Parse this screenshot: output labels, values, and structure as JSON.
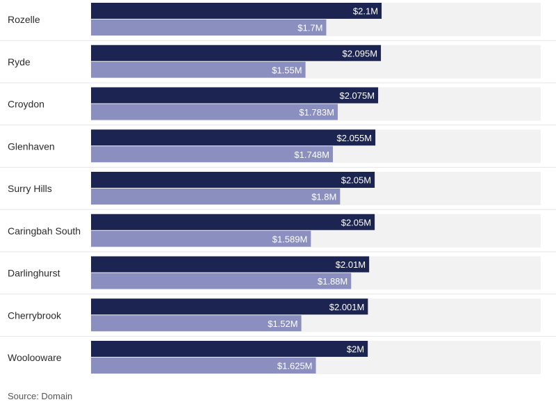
{
  "chart_data": {
    "type": "bar",
    "orientation": "horizontal",
    "categories": [
      "Rozelle",
      "Ryde",
      "Croydon",
      "Glenhaven",
      "Surry Hills",
      "Caringbah South",
      "Darlinghurst",
      "Cherrybrook",
      "Woolooware"
    ],
    "series": [
      {
        "color": "#1c2452",
        "values": [
          2.1,
          2.095,
          2.075,
          2.055,
          2.05,
          2.05,
          2.01,
          2.001,
          2.0
        ],
        "labels": [
          "$2.1M",
          "$2.095M",
          "$2.075M",
          "$2.055M",
          "$2.05M",
          "$2.05M",
          "$2.01M",
          "$2.001M",
          "$2M"
        ]
      },
      {
        "color": "#8a8fbf",
        "values": [
          1.7,
          1.55,
          1.783,
          1.748,
          1.8,
          1.589,
          1.88,
          1.52,
          1.625
        ],
        "labels": [
          "$1.7M",
          "$1.55M",
          "$1.783M",
          "$1.748M",
          "$1.8M",
          "$1.589M",
          "$1.88M",
          "$1.52M",
          "$1.625M"
        ]
      }
    ],
    "title": "",
    "xlabel": "",
    "ylabel": "",
    "xlim": [
      0,
      3.25
    ],
    "grid": false,
    "legend": "none",
    "row_background_color": "#f2f2f2"
  },
  "source": "Source: Domain"
}
